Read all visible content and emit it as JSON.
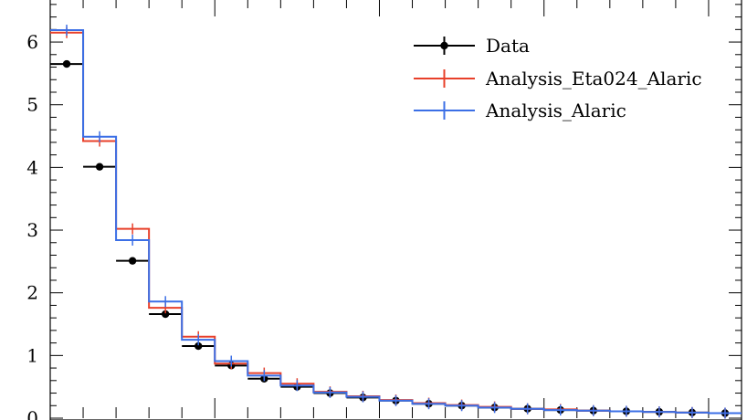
{
  "chart_data": {
    "type": "histogram",
    "x_edges": [
      0,
      1,
      2,
      3,
      4,
      5,
      6,
      7,
      8,
      9,
      10,
      11,
      12,
      13,
      14,
      15,
      16,
      17,
      18,
      19,
      20,
      21
    ],
    "ylim": [
      0,
      6.7
    ],
    "yticks": [
      0,
      1,
      2,
      3,
      4,
      5,
      6
    ],
    "ytick_labels": [
      "0",
      "1",
      "2",
      "3",
      "4",
      "5",
      "6"
    ],
    "series": [
      {
        "name": "Data",
        "style": "points",
        "color": "#000000",
        "values": [
          5.65,
          4.01,
          2.51,
          1.66,
          1.15,
          0.84,
          0.63,
          0.5,
          0.4,
          0.33,
          0.28,
          0.23,
          0.2,
          0.17,
          0.15,
          0.13,
          0.12,
          0.11,
          0.1,
          0.09,
          0.08
        ]
      },
      {
        "name": "Analysis_Eta024_Alaric",
        "style": "step",
        "color": "#e8402a",
        "values": [
          6.15,
          4.42,
          3.02,
          1.76,
          1.3,
          0.87,
          0.72,
          0.55,
          0.42,
          0.35,
          0.29,
          0.24,
          0.21,
          0.18,
          0.15,
          0.14,
          0.12,
          0.11,
          0.1,
          0.09,
          0.08
        ]
      },
      {
        "name": "Analysis_Alaric",
        "style": "step",
        "color": "#3b6fe6",
        "values": [
          6.19,
          4.49,
          2.84,
          1.86,
          1.25,
          0.91,
          0.68,
          0.52,
          0.41,
          0.34,
          0.28,
          0.23,
          0.2,
          0.17,
          0.15,
          0.13,
          0.12,
          0.11,
          0.1,
          0.09,
          0.08
        ]
      }
    ],
    "legend_position": "top-right",
    "grid": false
  }
}
